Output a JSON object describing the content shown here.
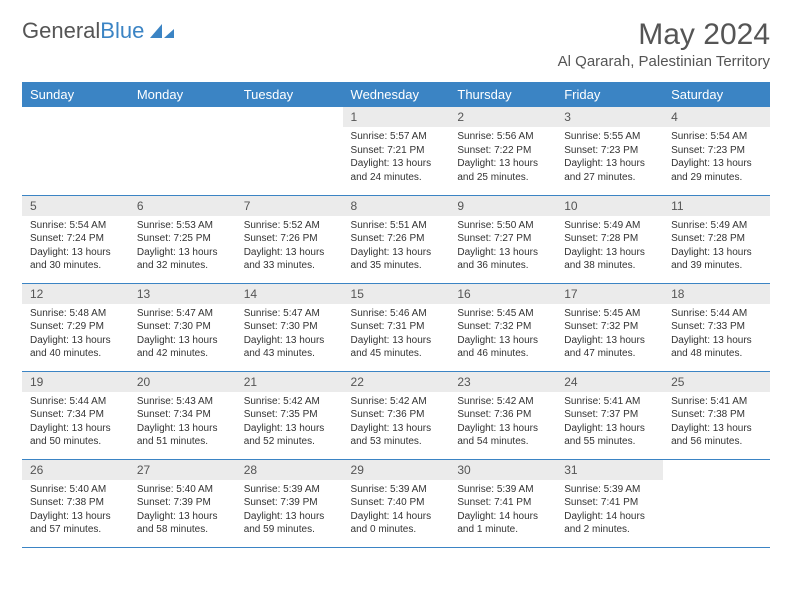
{
  "brand": {
    "part1": "General",
    "part2": "Blue"
  },
  "title": "May 2024",
  "location": "Al Qararah, Palestinian Territory",
  "colors": {
    "header_bg": "#3b84c4",
    "header_text": "#ffffff",
    "daynum_bg": "#ebebeb",
    "text": "#333333",
    "muted": "#555555",
    "rule": "#3b84c4",
    "page_bg": "#ffffff"
  },
  "daysOfWeek": [
    "Sunday",
    "Monday",
    "Tuesday",
    "Wednesday",
    "Thursday",
    "Friday",
    "Saturday"
  ],
  "weeks": [
    [
      {
        "n": "",
        "lines": []
      },
      {
        "n": "",
        "lines": []
      },
      {
        "n": "",
        "lines": []
      },
      {
        "n": "1",
        "lines": [
          "Sunrise: 5:57 AM",
          "Sunset: 7:21 PM",
          "Daylight: 13 hours",
          "and 24 minutes."
        ]
      },
      {
        "n": "2",
        "lines": [
          "Sunrise: 5:56 AM",
          "Sunset: 7:22 PM",
          "Daylight: 13 hours",
          "and 25 minutes."
        ]
      },
      {
        "n": "3",
        "lines": [
          "Sunrise: 5:55 AM",
          "Sunset: 7:23 PM",
          "Daylight: 13 hours",
          "and 27 minutes."
        ]
      },
      {
        "n": "4",
        "lines": [
          "Sunrise: 5:54 AM",
          "Sunset: 7:23 PM",
          "Daylight: 13 hours",
          "and 29 minutes."
        ]
      }
    ],
    [
      {
        "n": "5",
        "lines": [
          "Sunrise: 5:54 AM",
          "Sunset: 7:24 PM",
          "Daylight: 13 hours",
          "and 30 minutes."
        ]
      },
      {
        "n": "6",
        "lines": [
          "Sunrise: 5:53 AM",
          "Sunset: 7:25 PM",
          "Daylight: 13 hours",
          "and 32 minutes."
        ]
      },
      {
        "n": "7",
        "lines": [
          "Sunrise: 5:52 AM",
          "Sunset: 7:26 PM",
          "Daylight: 13 hours",
          "and 33 minutes."
        ]
      },
      {
        "n": "8",
        "lines": [
          "Sunrise: 5:51 AM",
          "Sunset: 7:26 PM",
          "Daylight: 13 hours",
          "and 35 minutes."
        ]
      },
      {
        "n": "9",
        "lines": [
          "Sunrise: 5:50 AM",
          "Sunset: 7:27 PM",
          "Daylight: 13 hours",
          "and 36 minutes."
        ]
      },
      {
        "n": "10",
        "lines": [
          "Sunrise: 5:49 AM",
          "Sunset: 7:28 PM",
          "Daylight: 13 hours",
          "and 38 minutes."
        ]
      },
      {
        "n": "11",
        "lines": [
          "Sunrise: 5:49 AM",
          "Sunset: 7:28 PM",
          "Daylight: 13 hours",
          "and 39 minutes."
        ]
      }
    ],
    [
      {
        "n": "12",
        "lines": [
          "Sunrise: 5:48 AM",
          "Sunset: 7:29 PM",
          "Daylight: 13 hours",
          "and 40 minutes."
        ]
      },
      {
        "n": "13",
        "lines": [
          "Sunrise: 5:47 AM",
          "Sunset: 7:30 PM",
          "Daylight: 13 hours",
          "and 42 minutes."
        ]
      },
      {
        "n": "14",
        "lines": [
          "Sunrise: 5:47 AM",
          "Sunset: 7:30 PM",
          "Daylight: 13 hours",
          "and 43 minutes."
        ]
      },
      {
        "n": "15",
        "lines": [
          "Sunrise: 5:46 AM",
          "Sunset: 7:31 PM",
          "Daylight: 13 hours",
          "and 45 minutes."
        ]
      },
      {
        "n": "16",
        "lines": [
          "Sunrise: 5:45 AM",
          "Sunset: 7:32 PM",
          "Daylight: 13 hours",
          "and 46 minutes."
        ]
      },
      {
        "n": "17",
        "lines": [
          "Sunrise: 5:45 AM",
          "Sunset: 7:32 PM",
          "Daylight: 13 hours",
          "and 47 minutes."
        ]
      },
      {
        "n": "18",
        "lines": [
          "Sunrise: 5:44 AM",
          "Sunset: 7:33 PM",
          "Daylight: 13 hours",
          "and 48 minutes."
        ]
      }
    ],
    [
      {
        "n": "19",
        "lines": [
          "Sunrise: 5:44 AM",
          "Sunset: 7:34 PM",
          "Daylight: 13 hours",
          "and 50 minutes."
        ]
      },
      {
        "n": "20",
        "lines": [
          "Sunrise: 5:43 AM",
          "Sunset: 7:34 PM",
          "Daylight: 13 hours",
          "and 51 minutes."
        ]
      },
      {
        "n": "21",
        "lines": [
          "Sunrise: 5:42 AM",
          "Sunset: 7:35 PM",
          "Daylight: 13 hours",
          "and 52 minutes."
        ]
      },
      {
        "n": "22",
        "lines": [
          "Sunrise: 5:42 AM",
          "Sunset: 7:36 PM",
          "Daylight: 13 hours",
          "and 53 minutes."
        ]
      },
      {
        "n": "23",
        "lines": [
          "Sunrise: 5:42 AM",
          "Sunset: 7:36 PM",
          "Daylight: 13 hours",
          "and 54 minutes."
        ]
      },
      {
        "n": "24",
        "lines": [
          "Sunrise: 5:41 AM",
          "Sunset: 7:37 PM",
          "Daylight: 13 hours",
          "and 55 minutes."
        ]
      },
      {
        "n": "25",
        "lines": [
          "Sunrise: 5:41 AM",
          "Sunset: 7:38 PM",
          "Daylight: 13 hours",
          "and 56 minutes."
        ]
      }
    ],
    [
      {
        "n": "26",
        "lines": [
          "Sunrise: 5:40 AM",
          "Sunset: 7:38 PM",
          "Daylight: 13 hours",
          "and 57 minutes."
        ]
      },
      {
        "n": "27",
        "lines": [
          "Sunrise: 5:40 AM",
          "Sunset: 7:39 PM",
          "Daylight: 13 hours",
          "and 58 minutes."
        ]
      },
      {
        "n": "28",
        "lines": [
          "Sunrise: 5:39 AM",
          "Sunset: 7:39 PM",
          "Daylight: 13 hours",
          "and 59 minutes."
        ]
      },
      {
        "n": "29",
        "lines": [
          "Sunrise: 5:39 AM",
          "Sunset: 7:40 PM",
          "Daylight: 14 hours",
          "and 0 minutes."
        ]
      },
      {
        "n": "30",
        "lines": [
          "Sunrise: 5:39 AM",
          "Sunset: 7:41 PM",
          "Daylight: 14 hours",
          "and 1 minute."
        ]
      },
      {
        "n": "31",
        "lines": [
          "Sunrise: 5:39 AM",
          "Sunset: 7:41 PM",
          "Daylight: 14 hours",
          "and 2 minutes."
        ]
      },
      {
        "n": "",
        "lines": []
      }
    ]
  ]
}
